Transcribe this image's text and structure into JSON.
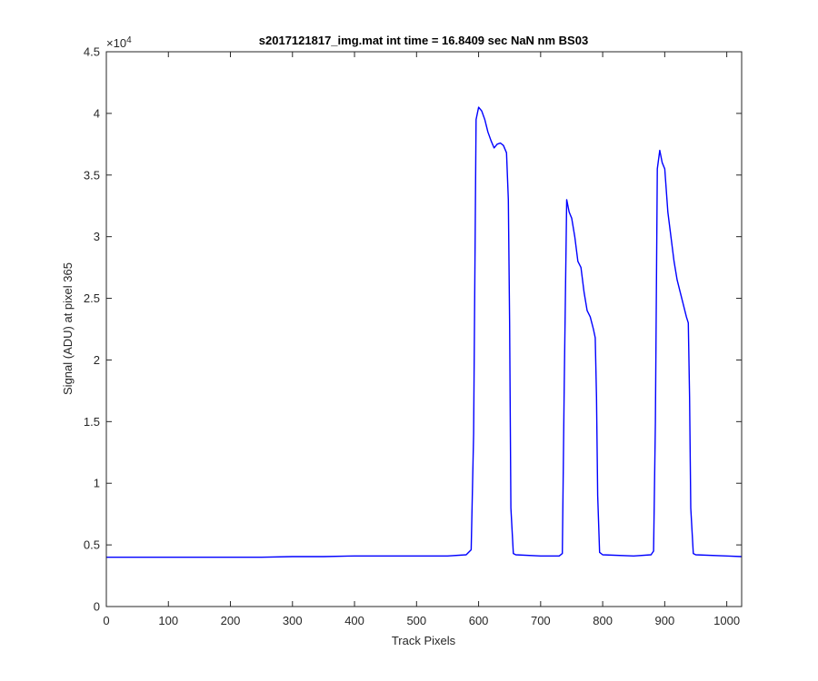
{
  "chart_data": {
    "type": "line",
    "title": "s2017121817_img.mat int time = 16.8409 sec  NaN nm BS03",
    "xlabel": "Track Pixels",
    "ylabel": "Signal (ADU) at pixel 365",
    "xlim": [
      0,
      1024
    ],
    "ylim": [
      0,
      45000
    ],
    "y_exponent_label": "×10",
    "y_exponent_power": "4",
    "x_ticks": [
      0,
      100,
      200,
      300,
      400,
      500,
      600,
      700,
      800,
      900,
      1000
    ],
    "x_tick_labels": [
      "0",
      "100",
      "200",
      "300",
      "400",
      "500",
      "600",
      "700",
      "800",
      "900",
      "1000"
    ],
    "y_ticks": [
      0,
      5000,
      10000,
      15000,
      20000,
      25000,
      30000,
      35000,
      40000,
      45000
    ],
    "y_tick_labels": [
      "0",
      "0.5",
      "1",
      "1.5",
      "2",
      "2.5",
      "3",
      "3.5",
      "4",
      "4.5"
    ],
    "grid": false,
    "series": [
      {
        "color": "#0000ff",
        "x": [
          0,
          50,
          100,
          150,
          200,
          250,
          300,
          350,
          400,
          450,
          500,
          550,
          580,
          588,
          592,
          596,
          600,
          605,
          610,
          615,
          620,
          625,
          630,
          635,
          640,
          645,
          648,
          650,
          652,
          656,
          660,
          700,
          730,
          735,
          738,
          742,
          746,
          750,
          755,
          760,
          765,
          770,
          775,
          780,
          785,
          788,
          790,
          792,
          795,
          800,
          850,
          878,
          882,
          885,
          888,
          892,
          896,
          900,
          905,
          910,
          915,
          920,
          925,
          930,
          935,
          938,
          940,
          942,
          946,
          950,
          1000,
          1024
        ],
        "y": [
          4000,
          4000,
          4000,
          4000,
          4000,
          4000,
          4050,
          4050,
          4100,
          4100,
          4100,
          4100,
          4200,
          4600,
          14000,
          39500,
          40500,
          40200,
          39500,
          38500,
          37800,
          37200,
          37500,
          37600,
          37400,
          36800,
          33000,
          23000,
          8000,
          4300,
          4200,
          4100,
          4100,
          4300,
          18000,
          33000,
          32000,
          31500,
          30000,
          28000,
          27500,
          25500,
          24000,
          23500,
          22500,
          21800,
          17000,
          9000,
          4400,
          4200,
          4100,
          4200,
          4500,
          15000,
          35500,
          37000,
          36000,
          35500,
          32000,
          30000,
          28000,
          26500,
          25500,
          24500,
          23500,
          23000,
          17000,
          8000,
          4300,
          4200,
          4100,
          4050
        ]
      }
    ]
  }
}
